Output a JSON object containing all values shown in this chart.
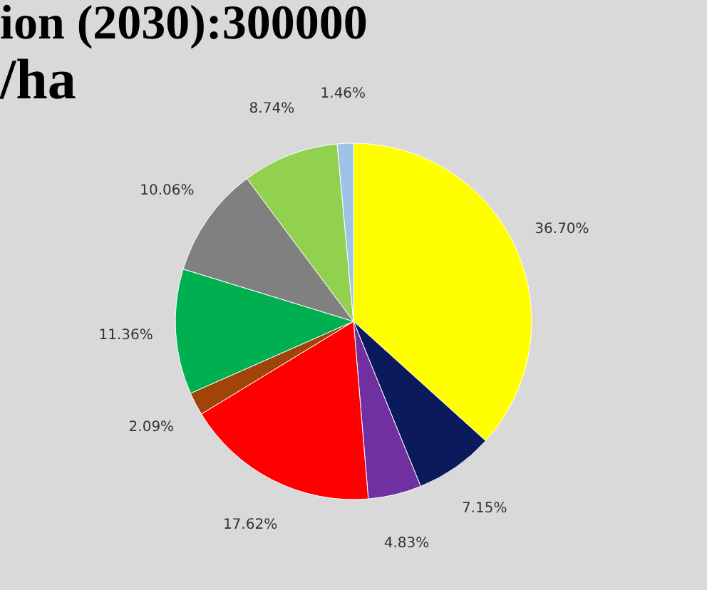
{
  "chart_data": {
    "type": "pie",
    "title": "ion (2030):300000",
    "subtitle": "/ha",
    "categories": [
      null,
      null,
      null,
      null,
      null,
      null,
      null,
      null,
      null
    ],
    "values": [
      36.7,
      7.15,
      4.83,
      17.62,
      2.09,
      11.36,
      10.06,
      8.74,
      1.46
    ],
    "colors": [
      "#ffff00",
      "#0a1a5c",
      "#7030a0",
      "#ff0000",
      "#a0440a",
      "#00b050",
      "#808080",
      "#92d050",
      "#9dc3e6"
    ],
    "value_labels": [
      "36.70%",
      "7.15%",
      "4.83%",
      "17.62%",
      "2.09%",
      "11.36%",
      "10.06%",
      "8.74%",
      "1.46%"
    ],
    "legend": false
  }
}
